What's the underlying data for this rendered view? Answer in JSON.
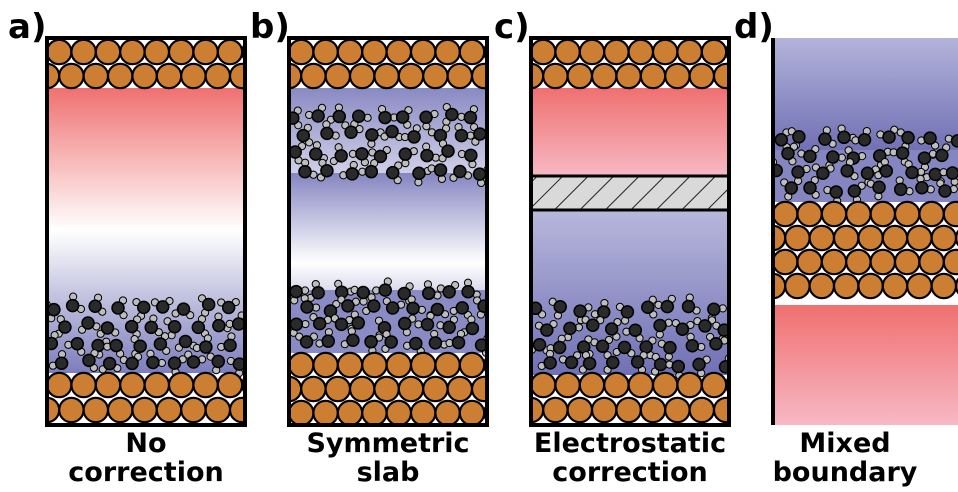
{
  "panels": [
    {
      "id": "a",
      "label": "a)",
      "caption": [
        "No",
        "correction"
      ]
    },
    {
      "id": "b",
      "label": "b)",
      "caption": [
        "Symmetric",
        "slab"
      ]
    },
    {
      "id": "c",
      "label": "c)",
      "caption": [
        "Electrostatic",
        "correction"
      ]
    },
    {
      "id": "d",
      "label": "d)",
      "caption": [
        "Mixed",
        "boundary"
      ]
    }
  ],
  "colors": {
    "metal_atom": "#cc7f32",
    "metal_outline": "#000000",
    "field_red": "#f07070",
    "field_blue": "#7d7dbd",
    "hatch_fill": "#d9d9d9",
    "water_oxygen": "#2a2a2a",
    "water_hydrogen": "#bdbdbd"
  }
}
